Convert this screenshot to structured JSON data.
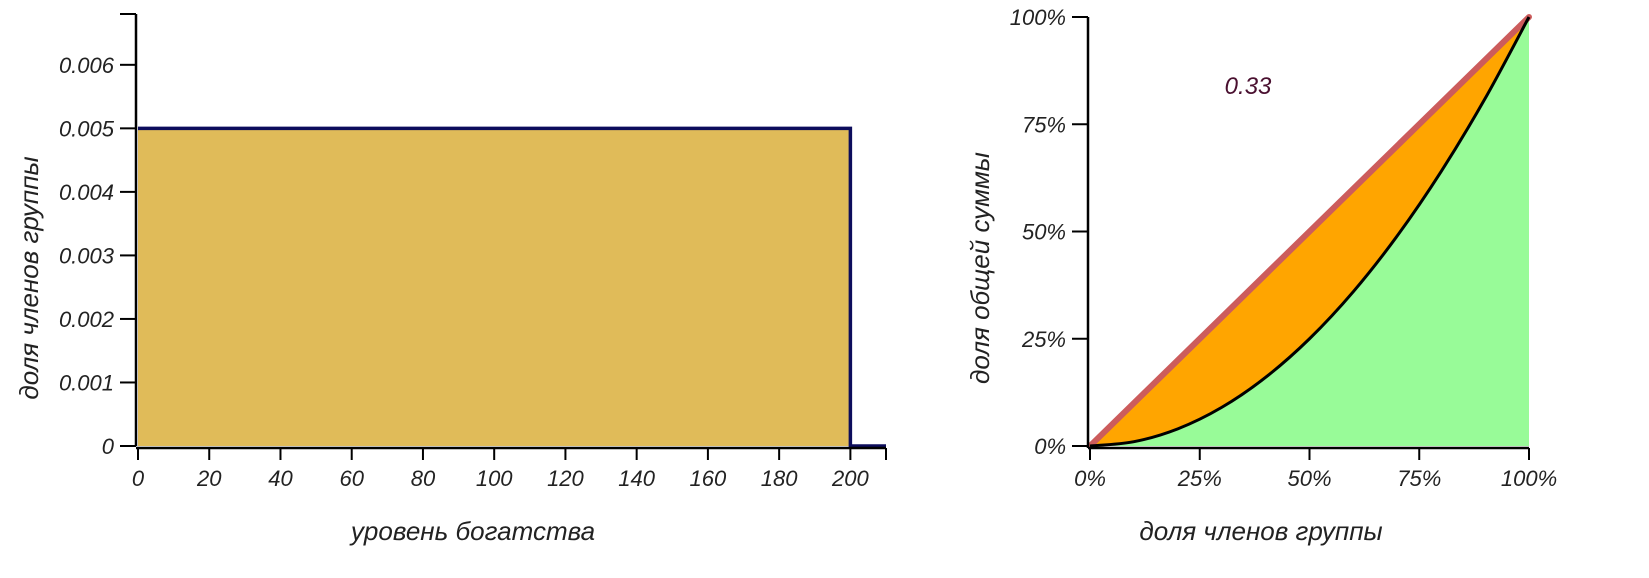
{
  "colors": {
    "histogram_fill": "#e0bb59",
    "histogram_line": "#0d0d5c",
    "equality_line": "#cc5c5c",
    "inequality_area": "#ffa500",
    "lorenz_area": "#98fb98",
    "lorenz_line": "#000000",
    "gini_text": "#4a1030",
    "axis": "#000000"
  },
  "chart_data": [
    {
      "type": "area",
      "description_type": "step-histogram",
      "xlabel": "уровень богатства",
      "ylabel": "доля членов группы",
      "xlim": [
        0,
        210
      ],
      "ylim": [
        0,
        0.0068
      ],
      "x_ticks": [
        0,
        20,
        40,
        60,
        80,
        100,
        120,
        140,
        160,
        180,
        200
      ],
      "x_tick_labels": [
        "0",
        "20",
        "40",
        "60",
        "80",
        "100",
        "120",
        "140",
        "160",
        "180",
        "200"
      ],
      "y_ticks": [
        0,
        0.001,
        0.002,
        0.003,
        0.004,
        0.005,
        0.006
      ],
      "y_tick_labels": [
        "0",
        "0.001",
        "0.002",
        "0.003",
        "0.004",
        "0.005",
        "0.006"
      ],
      "series": [
        {
          "x": [
            0,
            200,
            200,
            210
          ],
          "y": [
            0.005,
            0.005,
            0,
            0
          ]
        }
      ],
      "grid": false
    },
    {
      "type": "line",
      "description_type": "lorenz-curve",
      "xlabel": "доля членов группы",
      "ylabel": "доля общей суммы",
      "xlim": [
        0,
        1
      ],
      "ylim": [
        0,
        1
      ],
      "x_ticks": [
        0,
        0.25,
        0.5,
        0.75,
        1
      ],
      "x_tick_labels": [
        "0%",
        "25%",
        "50%",
        "75%",
        "100%"
      ],
      "y_ticks": [
        0,
        0.25,
        0.5,
        0.75,
        1
      ],
      "y_tick_labels": [
        "0%",
        "25%",
        "50%",
        "75%",
        "100%"
      ],
      "series": [
        {
          "x": [
            0,
            1
          ],
          "y": [
            0,
            1
          ]
        },
        {
          "x": [
            0,
            0.1,
            0.2,
            0.3,
            0.4,
            0.5,
            0.6,
            0.7,
            0.8,
            0.9,
            1.0
          ],
          "y": [
            0,
            0.01,
            0.04,
            0.09,
            0.16,
            0.25,
            0.36,
            0.49,
            0.64,
            0.81,
            1.0
          ]
        }
      ],
      "annotations": [
        {
          "text": "0.33",
          "x": 0.36,
          "y": 0.82
        }
      ],
      "grid": false
    }
  ]
}
